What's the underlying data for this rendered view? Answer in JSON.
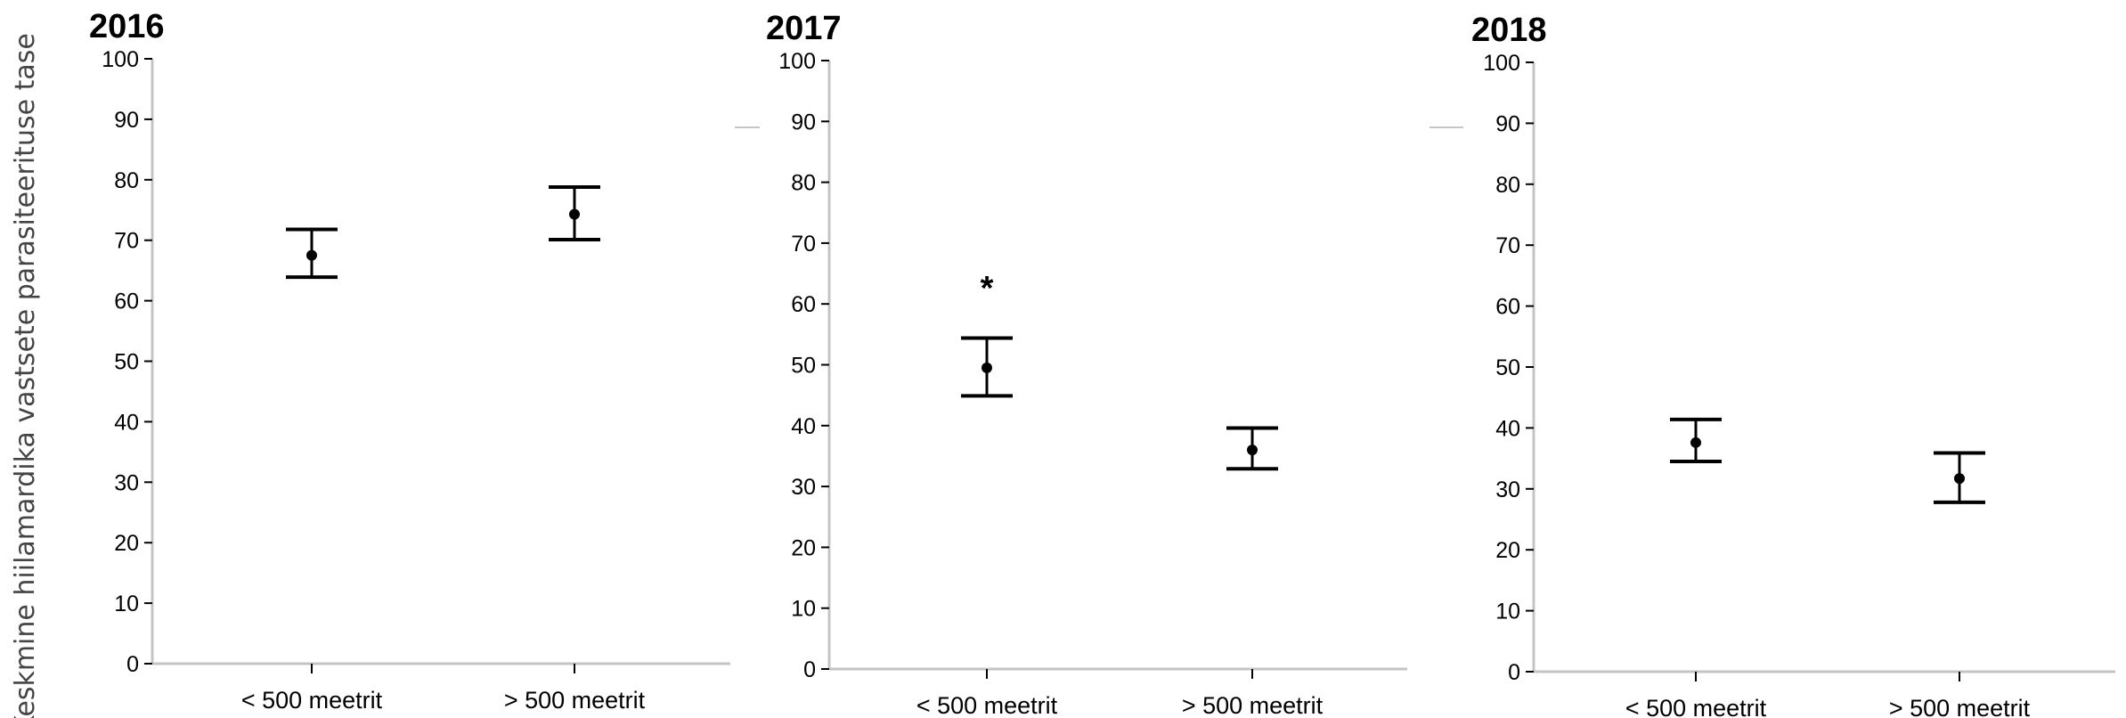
{
  "ylabel": "Keskmine hiilamardika vastsete parasiteerituse tase",
  "chart_data": [
    {
      "type": "scatter",
      "title": "2016",
      "categories": [
        "< 500 meetrit",
        "> 500 meetrit"
      ],
      "values": [
        67.5,
        74.3
      ],
      "error_low": [
        63.9,
        70.1
      ],
      "error_high": [
        71.8,
        78.8
      ],
      "annotations": [],
      "ylim": [
        0,
        100
      ],
      "yticks": [
        "0",
        "10",
        "20",
        "30",
        "40",
        "50",
        "60",
        "70",
        "80",
        "90",
        "100"
      ],
      "grid": false
    },
    {
      "type": "scatter",
      "title": "2017",
      "categories": [
        "< 500 meetrit",
        "> 500 meetrit"
      ],
      "values": [
        49.5,
        36.0
      ],
      "error_low": [
        44.9,
        32.9
      ],
      "error_high": [
        54.4,
        39.6
      ],
      "annotations": [
        {
          "text": "*",
          "category_index": 0,
          "y": 64
        }
      ],
      "ylim": [
        0,
        100
      ],
      "yticks": [
        "0",
        "10",
        "20",
        "30",
        "40",
        "50",
        "60",
        "70",
        "80",
        "90",
        "100"
      ],
      "grid": false
    },
    {
      "type": "scatter",
      "title": "2018",
      "categories": [
        "< 500 meetrit",
        "> 500 meetrit"
      ],
      "values": [
        37.6,
        31.7
      ],
      "error_low": [
        34.5,
        27.8
      ],
      "error_high": [
        41.4,
        35.9
      ],
      "annotations": [],
      "ylim": [
        0,
        100
      ],
      "yticks": [
        "0",
        "10",
        "20",
        "30",
        "40",
        "50",
        "60",
        "70",
        "80",
        "90",
        "100"
      ],
      "grid": false
    }
  ]
}
